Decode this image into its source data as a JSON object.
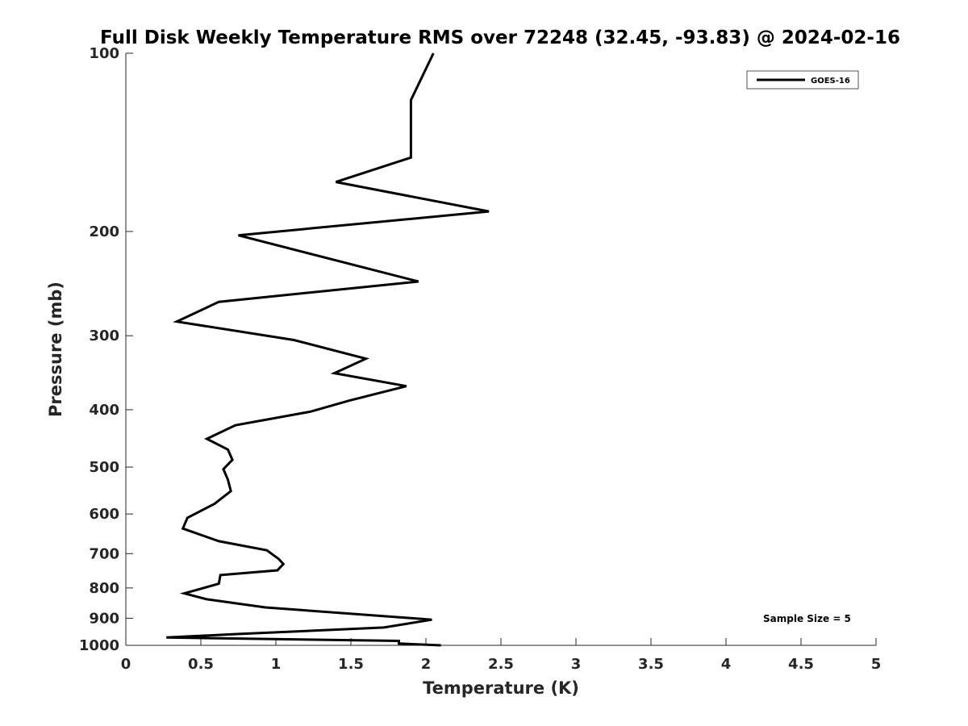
{
  "chart_data": {
    "type": "line",
    "title": "Full Disk Weekly Temperature RMS over 72248 (32.45, -93.83) @ 2024-02-16",
    "xlabel": "Temperature (K)",
    "ylabel": "Pressure (mb)",
    "xlim": [
      0,
      5
    ],
    "ylim": [
      100,
      1000
    ],
    "y_scale": "log",
    "y_reversed": true,
    "grid": false,
    "legend_position": "top-right",
    "x_ticks": [
      "0",
      "0.5",
      "1",
      "1.5",
      "2",
      "2.5",
      "3",
      "3.5",
      "4",
      "4.5",
      "5"
    ],
    "y_ticks": [
      "100",
      "200",
      "300",
      "400",
      "500",
      "600",
      "700",
      "800",
      "900",
      "1000"
    ],
    "annotation": "Sample Size = 5",
    "series": [
      {
        "name": "GOES-16",
        "color": "#000000",
        "x": [
          2.05,
          1.9,
          1.9,
          1.9,
          1.4,
          2.42,
          0.75,
          1.95,
          0.62,
          0.34,
          1.12,
          1.6,
          1.39,
          1.87,
          1.49,
          1.23,
          0.73,
          0.54,
          0.68,
          0.71,
          0.65,
          0.68,
          0.7,
          0.59,
          0.41,
          0.38,
          0.62,
          0.94,
          1.02,
          1.05,
          1.01,
          0.63,
          0.62,
          0.39,
          0.54,
          0.93,
          2.04,
          1.72,
          0.74,
          0.27,
          1.82,
          1.82,
          2.1
        ],
        "y": [
          100,
          120,
          140,
          150,
          165,
          185,
          203,
          243,
          263,
          284,
          305,
          328,
          347,
          365,
          386,
          403,
          425,
          448,
          467,
          486,
          504,
          525,
          549,
          577,
          609,
          635,
          667,
          691,
          715,
          729,
          747,
          761,
          787,
          817,
          836,
          863,
          905,
          933,
          957,
          970,
          983,
          993,
          1000
        ]
      }
    ]
  }
}
